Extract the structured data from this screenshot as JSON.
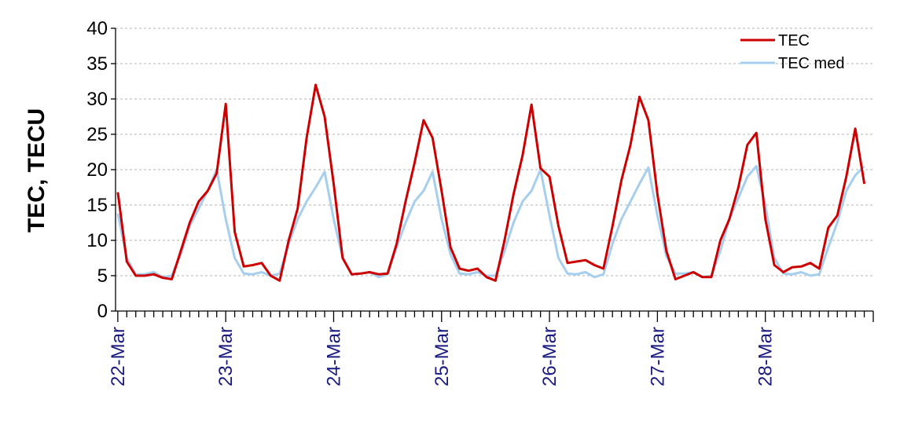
{
  "chart_data": {
    "type": "line",
    "ylabel": "TEC, TECU",
    "xlabel": "",
    "ylim": [
      0,
      40
    ],
    "yticks": [
      0,
      5,
      10,
      15,
      20,
      25,
      30,
      35,
      40
    ],
    "x_start_hour": -0.5,
    "x_end_hour": 168,
    "x_step_hours": 2,
    "date_labels": [
      "22-Mar",
      "23-Mar",
      "24-Mar",
      "25-Mar",
      "26-Mar",
      "27-Mar",
      "28-Mar"
    ],
    "grid": true,
    "legend_position": "top-right",
    "series": [
      {
        "name": "TEC",
        "color": "#cc0000",
        "values": [
          16.8,
          7.0,
          5.0,
          5.0,
          5.2,
          4.7,
          4.5,
          8.5,
          12.5,
          15.5,
          17.0,
          19.5,
          29.3,
          11.2,
          6.3,
          6.5,
          6.8,
          5.0,
          4.3,
          10.0,
          14.5,
          24.5,
          32.0,
          27.5,
          18.0,
          7.5,
          5.2,
          5.3,
          5.5,
          5.2,
          5.3,
          9.5,
          15.5,
          21.0,
          27.0,
          24.5,
          17.0,
          9.0,
          6.0,
          5.7,
          6.0,
          4.8,
          4.3,
          10.0,
          16.5,
          22.0,
          29.2,
          20.2,
          19.0,
          12.0,
          6.8,
          7.0,
          7.2,
          6.5,
          6.0,
          12.0,
          18.5,
          23.5,
          30.3,
          27.0,
          16.5,
          8.5,
          4.5,
          5.0,
          5.5,
          4.8,
          4.8,
          10.0,
          13.0,
          17.5,
          23.5,
          25.2,
          13.0,
          6.5,
          5.5,
          6.2,
          6.3,
          6.8,
          6.0,
          11.8,
          13.5,
          19.0,
          25.8,
          18.0
        ],
        "dates": [
          "22-Mar",
          "22-Mar",
          "22-Mar",
          "22-Mar",
          "22-Mar",
          "22-Mar",
          "22-Mar",
          "22-Mar",
          "22-Mar",
          "22-Mar",
          "22-Mar",
          "22-Mar",
          "23-Mar",
          "23-Mar",
          "23-Mar",
          "23-Mar",
          "23-Mar",
          "23-Mar",
          "23-Mar",
          "23-Mar",
          "23-Mar",
          "23-Mar",
          "23-Mar",
          "23-Mar",
          "24-Mar",
          "24-Mar",
          "24-Mar",
          "24-Mar",
          "24-Mar",
          "24-Mar",
          "24-Mar",
          "24-Mar",
          "24-Mar",
          "24-Mar",
          "24-Mar",
          "24-Mar",
          "25-Mar",
          "25-Mar",
          "25-Mar",
          "25-Mar",
          "25-Mar",
          "25-Mar",
          "25-Mar",
          "25-Mar",
          "25-Mar",
          "25-Mar",
          "25-Mar",
          "25-Mar",
          "26-Mar",
          "26-Mar",
          "26-Mar",
          "26-Mar",
          "26-Mar",
          "26-Mar",
          "26-Mar",
          "26-Mar",
          "26-Mar",
          "26-Mar",
          "26-Mar",
          "26-Mar",
          "27-Mar",
          "27-Mar",
          "27-Mar",
          "27-Mar",
          "27-Mar",
          "27-Mar",
          "27-Mar",
          "27-Mar",
          "27-Mar",
          "27-Mar",
          "27-Mar",
          "27-Mar",
          "28-Mar",
          "28-Mar",
          "28-Mar",
          "28-Mar",
          "28-Mar",
          "28-Mar",
          "28-Mar",
          "28-Mar",
          "28-Mar",
          "28-Mar",
          "28-Mar",
          "28-Mar"
        ]
      },
      {
        "name": "TEC med",
        "color": "#a6cfef",
        "values": [
          13.8,
          7.5,
          5.2,
          5.2,
          5.5,
          4.8,
          5.0,
          8.0,
          12.0,
          14.5,
          17.0,
          20.0,
          13.0,
          7.5,
          5.3,
          5.2,
          5.5,
          5.0,
          5.3,
          9.5,
          13.0,
          15.5,
          17.5,
          19.7,
          13.0,
          7.5,
          5.2,
          5.3,
          5.5,
          4.8,
          5.2,
          9.0,
          12.5,
          15.5,
          17.0,
          19.7,
          13.0,
          8.0,
          5.3,
          5.2,
          5.5,
          5.0,
          5.0,
          8.5,
          12.5,
          15.5,
          17.0,
          20.0,
          13.5,
          7.5,
          5.3,
          5.2,
          5.5,
          4.8,
          5.2,
          9.5,
          13.0,
          15.5,
          18.0,
          20.3,
          13.5,
          7.8,
          5.3,
          5.3,
          5.5,
          4.8,
          5.0,
          8.5,
          13.0,
          16.0,
          19.0,
          20.5,
          15.0,
          7.5,
          5.3,
          5.2,
          5.5,
          5.0,
          5.2,
          9.0,
          12.5,
          17.0,
          19.2,
          20.5
        ]
      }
    ]
  }
}
